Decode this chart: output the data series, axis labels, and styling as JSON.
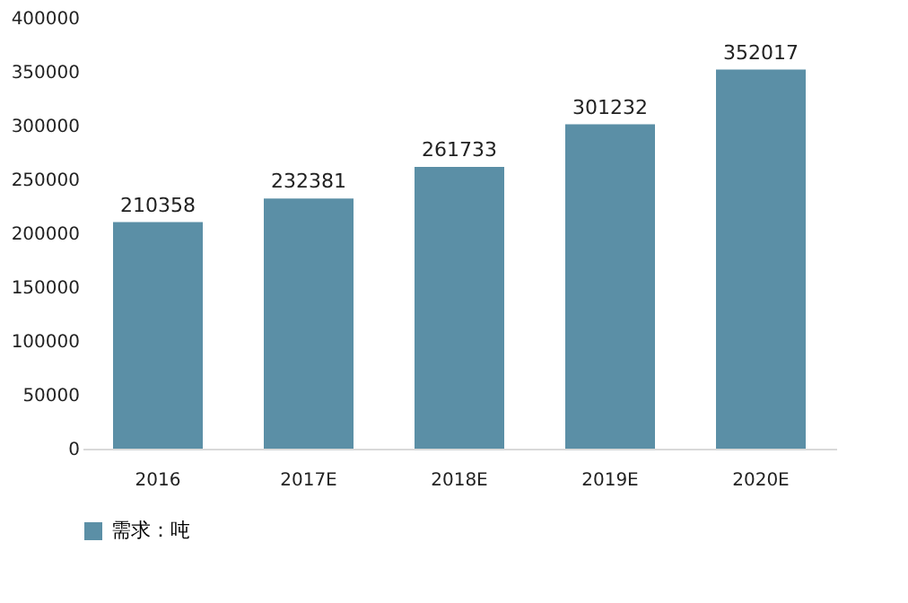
{
  "chart_data": {
    "type": "bar",
    "categories": [
      "2016",
      "2017E",
      "2018E",
      "2019E",
      "2020E"
    ],
    "series": [
      {
        "name": "需求：吨",
        "color": "#5b8fa6",
        "values": [
          210358,
          232381,
          261733,
          301232,
          352017
        ]
      }
    ],
    "ylim": [
      0,
      400000
    ],
    "yticks": [
      0,
      50000,
      100000,
      150000,
      200000,
      250000,
      300000,
      350000,
      400000
    ],
    "grid": false,
    "legend": "bottom",
    "data_labels": true
  }
}
